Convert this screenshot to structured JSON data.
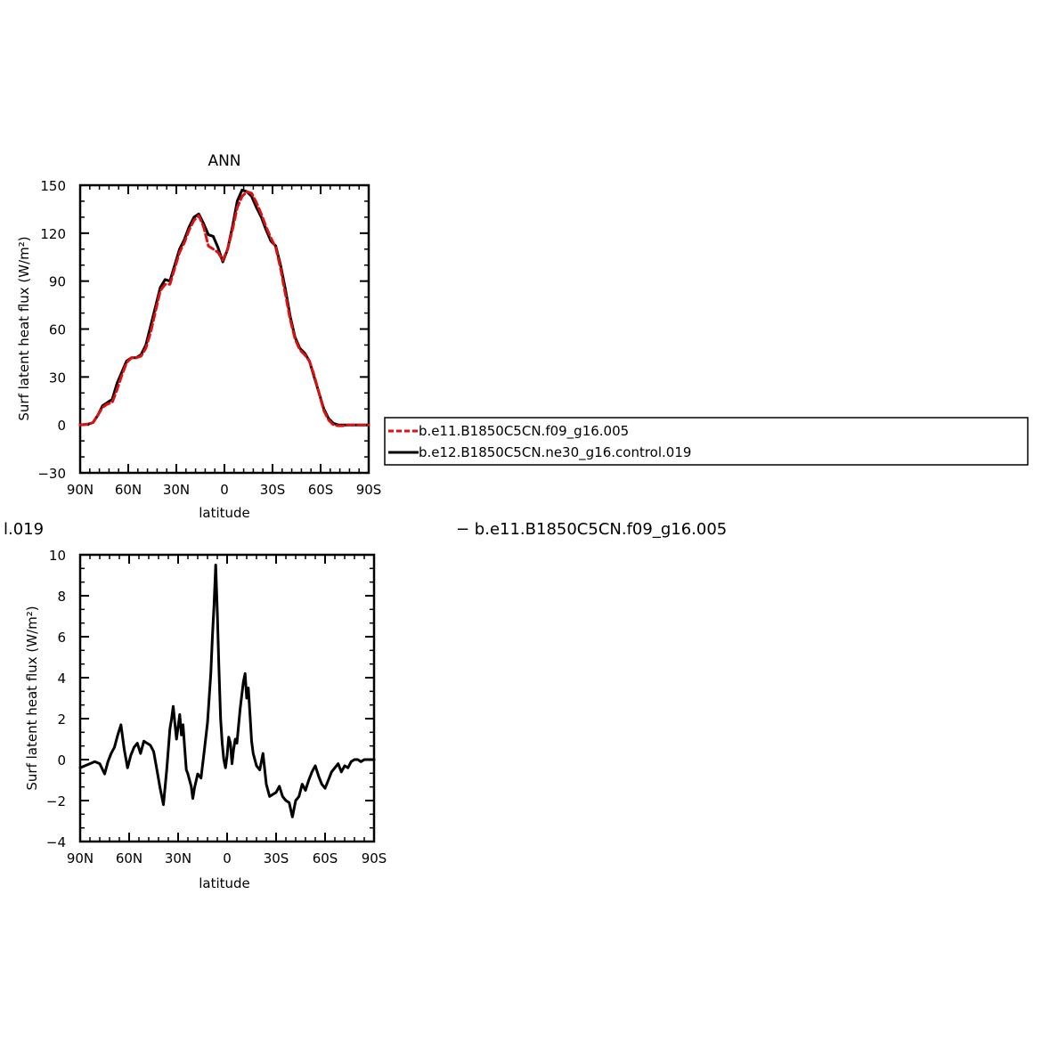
{
  "chart_data": [
    {
      "type": "line",
      "title": "ANN",
      "xlabel": "latitude",
      "ylabel": "Surf latent heat flux (W/m²)",
      "xlim": [
        -90,
        90
      ],
      "ylim": [
        -30,
        150
      ],
      "xticks": [
        {
          "v": -90,
          "label": "90N"
        },
        {
          "v": -60,
          "label": "60N"
        },
        {
          "v": -30,
          "label": "30N"
        },
        {
          "v": 0,
          "label": "0"
        },
        {
          "v": 30,
          "label": "30S"
        },
        {
          "v": 60,
          "label": "60S"
        },
        {
          "v": 90,
          "label": "90S"
        }
      ],
      "yticks": [
        {
          "v": -30,
          "label": "−30"
        },
        {
          "v": 0,
          "label": "0"
        },
        {
          "v": 30,
          "label": "30"
        },
        {
          "v": 60,
          "label": "60"
        },
        {
          "v": 90,
          "label": "90"
        },
        {
          "v": 120,
          "label": "120"
        },
        {
          "v": 150,
          "label": "150"
        }
      ],
      "series": [
        {
          "name": "b.e12.B1850C5CN.ne30_g16.control.019",
          "color": "#000000",
          "dash": "solid",
          "x": [
            -90,
            -85,
            -82,
            -79,
            -76,
            -73,
            -70,
            -67,
            -64,
            -61,
            -58,
            -55,
            -52,
            -49,
            -46,
            -43,
            -40,
            -37,
            -34,
            -31,
            -28,
            -25,
            -22,
            -19,
            -16,
            -13,
            -10,
            -7,
            -4,
            -1,
            2,
            5,
            8,
            11,
            14,
            17,
            20,
            23,
            26,
            29,
            32,
            35,
            38,
            41,
            44,
            47,
            50,
            53,
            56,
            59,
            62,
            65,
            68,
            71,
            74,
            77,
            80,
            83,
            86,
            90
          ],
          "y": [
            0,
            0.5,
            1.5,
            6,
            12,
            14,
            16,
            26,
            33,
            40,
            42,
            42,
            44,
            50,
            62,
            74,
            86,
            91,
            90,
            100,
            110,
            116,
            124,
            130,
            132,
            126,
            119,
            118,
            111,
            102,
            110,
            124,
            140,
            147,
            146,
            143,
            136,
            130,
            122,
            115,
            112,
            100,
            85,
            68,
            55,
            48,
            45,
            40,
            30,
            20,
            10,
            4,
            1,
            0,
            0,
            0,
            0,
            0,
            0,
            0
          ]
        },
        {
          "name": "b.e11.B1850C5CN.f09_g16.005",
          "color": "#e01010",
          "dash": "dashed",
          "x": [
            -90,
            -85,
            -82,
            -79,
            -76,
            -73,
            -70,
            -67,
            -64,
            -61,
            -58,
            -55,
            -52,
            -49,
            -46,
            -43,
            -40,
            -37,
            -34,
            -31,
            -28,
            -25,
            -22,
            -19,
            -16,
            -13,
            -10,
            -7,
            -4,
            -1,
            2,
            5,
            8,
            11,
            14,
            17,
            20,
            23,
            26,
            29,
            32,
            35,
            38,
            41,
            44,
            47,
            50,
            53,
            56,
            59,
            62,
            65,
            68,
            71,
            74,
            77,
            80,
            83,
            86,
            90
          ],
          "y": [
            0,
            0.5,
            1.5,
            6,
            11,
            13,
            14,
            22,
            31,
            39,
            42,
            42,
            43,
            48,
            58,
            71,
            84,
            88,
            88,
            98,
            108,
            114,
            122,
            128,
            131,
            124,
            112,
            110,
            108,
            103,
            110,
            122,
            136,
            143,
            146,
            145,
            139,
            132,
            124,
            117,
            111,
            98,
            82,
            66,
            54,
            47,
            44,
            40,
            31,
            20,
            9,
            3,
            0,
            -0.5,
            -0.5,
            0,
            0,
            0,
            0,
            0
          ]
        }
      ],
      "legend": {
        "placement": "right",
        "entries": [
          "b.e11.B1850C5CN.f09_g16.005",
          "b.e12.B1850C5CN.ne30_g16.control.019"
        ]
      }
    },
    {
      "type": "line",
      "title": "",
      "xlabel": "latitude",
      "ylabel": "Surf latent heat flux (W/m²)",
      "xlim": [
        -90,
        90
      ],
      "ylim": [
        -4,
        10
      ],
      "xticks": [
        {
          "v": -90,
          "label": "90N"
        },
        {
          "v": -60,
          "label": "60N"
        },
        {
          "v": -30,
          "label": "30N"
        },
        {
          "v": 0,
          "label": "0"
        },
        {
          "v": 30,
          "label": "30S"
        },
        {
          "v": 60,
          "label": "60S"
        },
        {
          "v": 90,
          "label": "90S"
        }
      ],
      "yticks": [
        {
          "v": -4,
          "label": "−4"
        },
        {
          "v": -2,
          "label": "−2"
        },
        {
          "v": 0,
          "label": "0"
        },
        {
          "v": 2,
          "label": "2"
        },
        {
          "v": 4,
          "label": "4"
        },
        {
          "v": 6,
          "label": "6"
        },
        {
          "v": 8,
          "label": "8"
        },
        {
          "v": 10,
          "label": "10"
        }
      ],
      "series": [
        {
          "name": "",
          "color": "#000000",
          "dash": "solid",
          "x": [
            -90,
            -87,
            -84,
            -81,
            -78,
            -75,
            -73,
            -71,
            -69,
            -67,
            -65,
            -63,
            -61,
            -59,
            -57,
            -55,
            -53,
            -51,
            -49,
            -47,
            -45,
            -43,
            -41,
            -39,
            -37,
            -35,
            -34,
            -33,
            -32,
            -31,
            -30,
            -29,
            -28,
            -27,
            -26,
            -25,
            -24,
            -23,
            -22,
            -21,
            -20,
            -18,
            -16,
            -14,
            -12,
            -10,
            -9,
            -8,
            -7,
            -6,
            -5,
            -4,
            -3,
            -2,
            -1,
            0,
            1,
            2,
            3,
            4,
            5,
            6,
            8,
            10,
            11,
            12,
            13,
            14,
            15,
            16,
            18,
            20,
            22,
            24,
            26,
            28,
            30,
            32,
            34,
            36,
            38,
            40,
            42,
            44,
            46,
            48,
            50,
            52,
            54,
            56,
            58,
            60,
            62,
            64,
            66,
            68,
            70,
            72,
            74,
            76,
            78,
            80,
            82,
            84,
            86,
            88,
            90
          ],
          "y": [
            -0.4,
            -0.3,
            -0.2,
            -0.1,
            -0.2,
            -0.7,
            -0.1,
            0.3,
            0.6,
            1.2,
            1.7,
            0.5,
            -0.4,
            0.2,
            0.6,
            0.8,
            0.3,
            0.9,
            0.8,
            0.7,
            0.4,
            -0.5,
            -1.4,
            -2.2,
            -0.5,
            1.5,
            2.0,
            2.6,
            1.8,
            1.0,
            1.6,
            2.2,
            1.2,
            1.7,
            0.6,
            -0.5,
            -0.7,
            -1.0,
            -1.3,
            -1.9,
            -1.4,
            -0.7,
            -0.9,
            0.4,
            1.8,
            4.2,
            6.0,
            7.5,
            9.5,
            7.2,
            4.5,
            2.0,
            0.8,
            0.0,
            -0.4,
            0.2,
            1.1,
            0.8,
            -0.2,
            0.5,
            1.0,
            0.8,
            2.5,
            3.8,
            4.2,
            3.0,
            3.5,
            2.2,
            0.9,
            0.3,
            -0.3,
            -0.5,
            0.3,
            -1.2,
            -1.8,
            -1.7,
            -1.6,
            -1.3,
            -1.8,
            -2.0,
            -2.1,
            -2.8,
            -2.0,
            -1.8,
            -1.2,
            -1.5,
            -1.0,
            -0.6,
            -0.3,
            -0.8,
            -1.2,
            -1.4,
            -1.0,
            -0.6,
            -0.4,
            -0.2,
            -0.6,
            -0.3,
            -0.4,
            -0.1,
            0.0,
            0.0,
            -0.1,
            0.0,
            0.0,
            0.0,
            0.0
          ]
        }
      ]
    }
  ],
  "fragments": {
    "left_clipped_label": "l.019",
    "right_label": "− b.e11.B1850C5CN.f09_g16.005"
  }
}
